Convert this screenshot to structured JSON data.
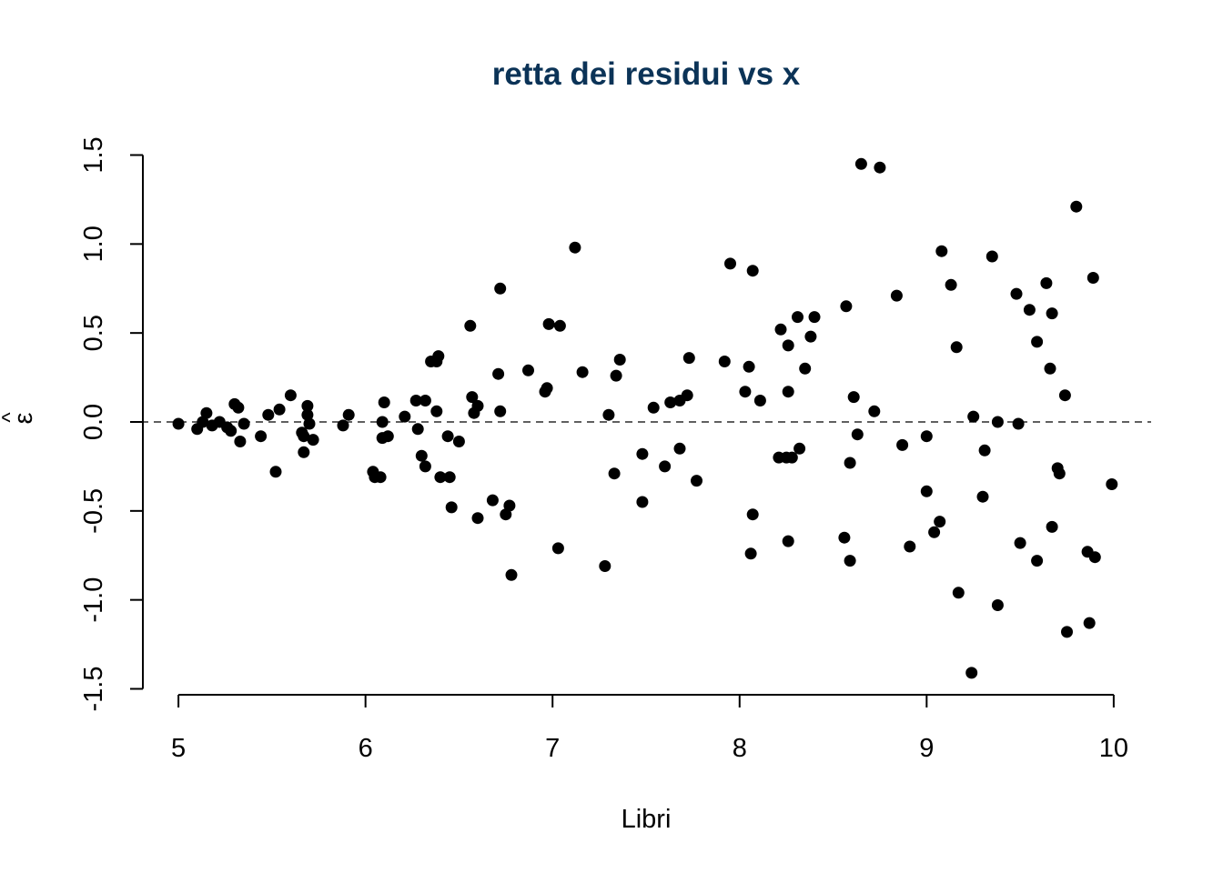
{
  "colors": {
    "title": "#0b3357",
    "points": "#000000",
    "axes": "#000000"
  },
  "chart_data": {
    "type": "scatter",
    "title": "retta dei residui vs x",
    "xlabel": "Libri",
    "ylabel_base": "ε",
    "ylabel_accent": "^",
    "xlim": [
      4.8,
      10.2
    ],
    "ylim": [
      -1.5,
      1.5
    ],
    "xticks": [
      5,
      6,
      7,
      8,
      9,
      10
    ],
    "xtick_labels": [
      "5",
      "6",
      "7",
      "8",
      "9",
      "10"
    ],
    "yticks": [
      -1.5,
      -1.0,
      -0.5,
      0.0,
      0.5,
      1.0,
      1.5
    ],
    "ytick_labels": [
      "-1.5",
      "-1.0",
      "-0.5",
      "0.0",
      "0.5",
      "1.0",
      "1.5"
    ],
    "reference_line": {
      "y": 0,
      "style": "dashed"
    },
    "grid": false,
    "points": [
      [
        5.0,
        -0.01
      ],
      [
        5.1,
        -0.04
      ],
      [
        5.13,
        0.0
      ],
      [
        5.15,
        0.05
      ],
      [
        5.18,
        -0.02
      ],
      [
        5.22,
        0.0
      ],
      [
        5.26,
        -0.03
      ],
      [
        5.28,
        -0.05
      ],
      [
        5.3,
        0.1
      ],
      [
        5.32,
        0.08
      ],
      [
        5.33,
        -0.11
      ],
      [
        5.35,
        -0.01
      ],
      [
        5.44,
        -0.08
      ],
      [
        5.48,
        0.04
      ],
      [
        5.52,
        -0.28
      ],
      [
        5.54,
        0.07
      ],
      [
        5.6,
        0.15
      ],
      [
        5.66,
        -0.06
      ],
      [
        5.67,
        -0.08
      ],
      [
        5.67,
        -0.17
      ],
      [
        5.69,
        0.09
      ],
      [
        5.69,
        0.04
      ],
      [
        5.7,
        -0.01
      ],
      [
        5.72,
        -0.1
      ],
      [
        5.88,
        -0.02
      ],
      [
        5.91,
        0.04
      ],
      [
        6.04,
        -0.28
      ],
      [
        6.05,
        -0.31
      ],
      [
        6.08,
        -0.31
      ],
      [
        6.09,
        0.0
      ],
      [
        6.09,
        -0.09
      ],
      [
        6.1,
        0.11
      ],
      [
        6.12,
        -0.08
      ],
      [
        6.21,
        0.03
      ],
      [
        6.27,
        0.12
      ],
      [
        6.28,
        -0.04
      ],
      [
        6.3,
        -0.19
      ],
      [
        6.32,
        0.12
      ],
      [
        6.32,
        -0.25
      ],
      [
        6.35,
        0.34
      ],
      [
        6.38,
        0.34
      ],
      [
        6.38,
        0.06
      ],
      [
        6.39,
        0.37
      ],
      [
        6.4,
        -0.31
      ],
      [
        6.44,
        -0.08
      ],
      [
        6.45,
        -0.31
      ],
      [
        6.46,
        -0.48
      ],
      [
        6.5,
        -0.11
      ],
      [
        6.56,
        0.54
      ],
      [
        6.57,
        0.14
      ],
      [
        6.58,
        0.05
      ],
      [
        6.6,
        0.09
      ],
      [
        6.6,
        -0.54
      ],
      [
        6.68,
        -0.44
      ],
      [
        6.71,
        0.27
      ],
      [
        6.72,
        0.75
      ],
      [
        6.72,
        0.06
      ],
      [
        6.75,
        -0.52
      ],
      [
        6.77,
        -0.47
      ],
      [
        6.78,
        -0.86
      ],
      [
        6.87,
        0.29
      ],
      [
        6.96,
        0.17
      ],
      [
        6.97,
        0.19
      ],
      [
        6.98,
        0.55
      ],
      [
        7.03,
        -0.71
      ],
      [
        7.04,
        0.54
      ],
      [
        7.12,
        0.98
      ],
      [
        7.16,
        0.28
      ],
      [
        7.28,
        -0.81
      ],
      [
        7.3,
        0.04
      ],
      [
        7.33,
        -0.29
      ],
      [
        7.34,
        0.26
      ],
      [
        7.36,
        0.35
      ],
      [
        7.48,
        -0.18
      ],
      [
        7.48,
        -0.45
      ],
      [
        7.54,
        0.08
      ],
      [
        7.6,
        -0.25
      ],
      [
        7.63,
        0.11
      ],
      [
        7.68,
        0.12
      ],
      [
        7.68,
        -0.15
      ],
      [
        7.72,
        0.15
      ],
      [
        7.73,
        0.36
      ],
      [
        7.77,
        -0.33
      ],
      [
        7.92,
        0.34
      ],
      [
        7.95,
        0.89
      ],
      [
        8.03,
        0.17
      ],
      [
        8.05,
        0.31
      ],
      [
        8.06,
        -0.74
      ],
      [
        8.07,
        -0.52
      ],
      [
        8.07,
        0.85
      ],
      [
        8.11,
        0.12
      ],
      [
        8.21,
        -0.2
      ],
      [
        8.22,
        0.52
      ],
      [
        8.25,
        -0.2
      ],
      [
        8.26,
        0.43
      ],
      [
        8.26,
        0.17
      ],
      [
        8.26,
        -0.67
      ],
      [
        8.28,
        -0.2
      ],
      [
        8.31,
        0.59
      ],
      [
        8.32,
        -0.15
      ],
      [
        8.35,
        0.3
      ],
      [
        8.38,
        0.48
      ],
      [
        8.4,
        0.59
      ],
      [
        8.56,
        -0.65
      ],
      [
        8.57,
        0.65
      ],
      [
        8.59,
        -0.23
      ],
      [
        8.59,
        -0.78
      ],
      [
        8.61,
        0.14
      ],
      [
        8.63,
        -0.07
      ],
      [
        8.65,
        1.45
      ],
      [
        8.72,
        0.06
      ],
      [
        8.75,
        1.43
      ],
      [
        8.84,
        0.71
      ],
      [
        8.87,
        -0.13
      ],
      [
        8.91,
        -0.7
      ],
      [
        9.0,
        -0.08
      ],
      [
        9.0,
        -0.39
      ],
      [
        9.04,
        -0.62
      ],
      [
        9.07,
        -0.56
      ],
      [
        9.08,
        0.96
      ],
      [
        9.13,
        0.77
      ],
      [
        9.16,
        0.42
      ],
      [
        9.17,
        -0.96
      ],
      [
        9.24,
        -1.41
      ],
      [
        9.25,
        0.03
      ],
      [
        9.3,
        -0.42
      ],
      [
        9.31,
        -0.16
      ],
      [
        9.35,
        0.93
      ],
      [
        9.38,
        -1.03
      ],
      [
        9.38,
        0.0
      ],
      [
        9.48,
        0.72
      ],
      [
        9.49,
        -0.01
      ],
      [
        9.5,
        -0.68
      ],
      [
        9.55,
        0.63
      ],
      [
        9.59,
        0.45
      ],
      [
        9.59,
        -0.78
      ],
      [
        9.64,
        0.78
      ],
      [
        9.66,
        0.3
      ],
      [
        9.67,
        0.61
      ],
      [
        9.67,
        -0.59
      ],
      [
        9.7,
        -0.26
      ],
      [
        9.71,
        -0.29
      ],
      [
        9.74,
        0.15
      ],
      [
        9.75,
        -1.18
      ],
      [
        9.8,
        1.21
      ],
      [
        9.86,
        -0.73
      ],
      [
        9.87,
        -1.13
      ],
      [
        9.89,
        0.81
      ],
      [
        9.9,
        -0.76
      ],
      [
        9.99,
        -0.35
      ]
    ]
  }
}
